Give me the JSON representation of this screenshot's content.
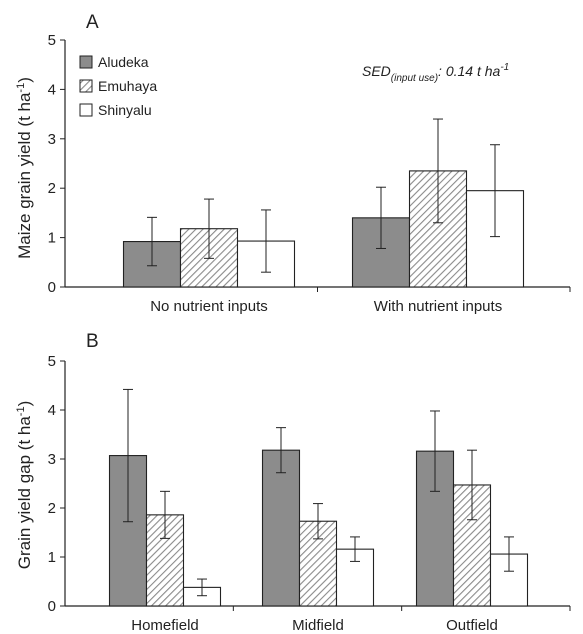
{
  "colors": {
    "aludeka": "#8c8c8c",
    "emuhaya_hatch": "#999999",
    "shinyalu": "#ffffff",
    "axis": "#222222"
  },
  "chart_data": [
    {
      "type": "bar",
      "panel_label": "A",
      "categories": [
        "No nutrient inputs",
        "With nutrient inputs"
      ],
      "ylabel": "Maize grain yield (t ha⁻¹)",
      "ylabel_main": "Maize grain yield (t ha",
      "ylabel_sup": "-1",
      "ylabel_close": ")",
      "ylim": [
        0,
        5
      ],
      "yticks": [
        "0",
        "1",
        "2",
        "3",
        "4",
        "5"
      ],
      "grid": false,
      "legend_position": "top-left",
      "annotation": "SED(input use): 0.14 t ha-1",
      "annotation_parts": {
        "main": "SED",
        "sub": "(input use)",
        "value": ": 0.14 t ha",
        "sup": "-1"
      },
      "series": [
        {
          "name": "Aludeka",
          "values": [
            0.92,
            1.4
          ],
          "errors": [
            0.49,
            0.62
          ]
        },
        {
          "name": "Emuhaya",
          "values": [
            1.18,
            2.35
          ],
          "errors": [
            0.6,
            1.05
          ]
        },
        {
          "name": "Shinyalu",
          "values": [
            0.93,
            1.95
          ],
          "errors": [
            0.63,
            0.93
          ]
        }
      ]
    },
    {
      "type": "bar",
      "panel_label": "B",
      "categories": [
        "Homefield",
        "Midfield",
        "Outfield"
      ],
      "ylabel": "Grain yield gap (t ha⁻¹)",
      "ylabel_main": "Grain yield gap (t ha",
      "ylabel_sup": "-1",
      "ylabel_close": ")",
      "ylim": [
        0,
        5
      ],
      "yticks": [
        "0",
        "1",
        "2",
        "3",
        "4",
        "5"
      ],
      "grid": false,
      "series": [
        {
          "name": "Aludeka",
          "values": [
            3.07,
            3.18,
            3.16
          ],
          "errors": [
            1.35,
            0.46,
            0.82
          ]
        },
        {
          "name": "Emuhaya",
          "values": [
            1.86,
            1.73,
            2.47
          ],
          "errors": [
            0.48,
            0.36,
            0.71
          ]
        },
        {
          "name": "Shinyalu",
          "values": [
            0.38,
            1.16,
            1.06
          ],
          "errors": [
            0.17,
            0.25,
            0.35
          ]
        }
      ]
    }
  ]
}
